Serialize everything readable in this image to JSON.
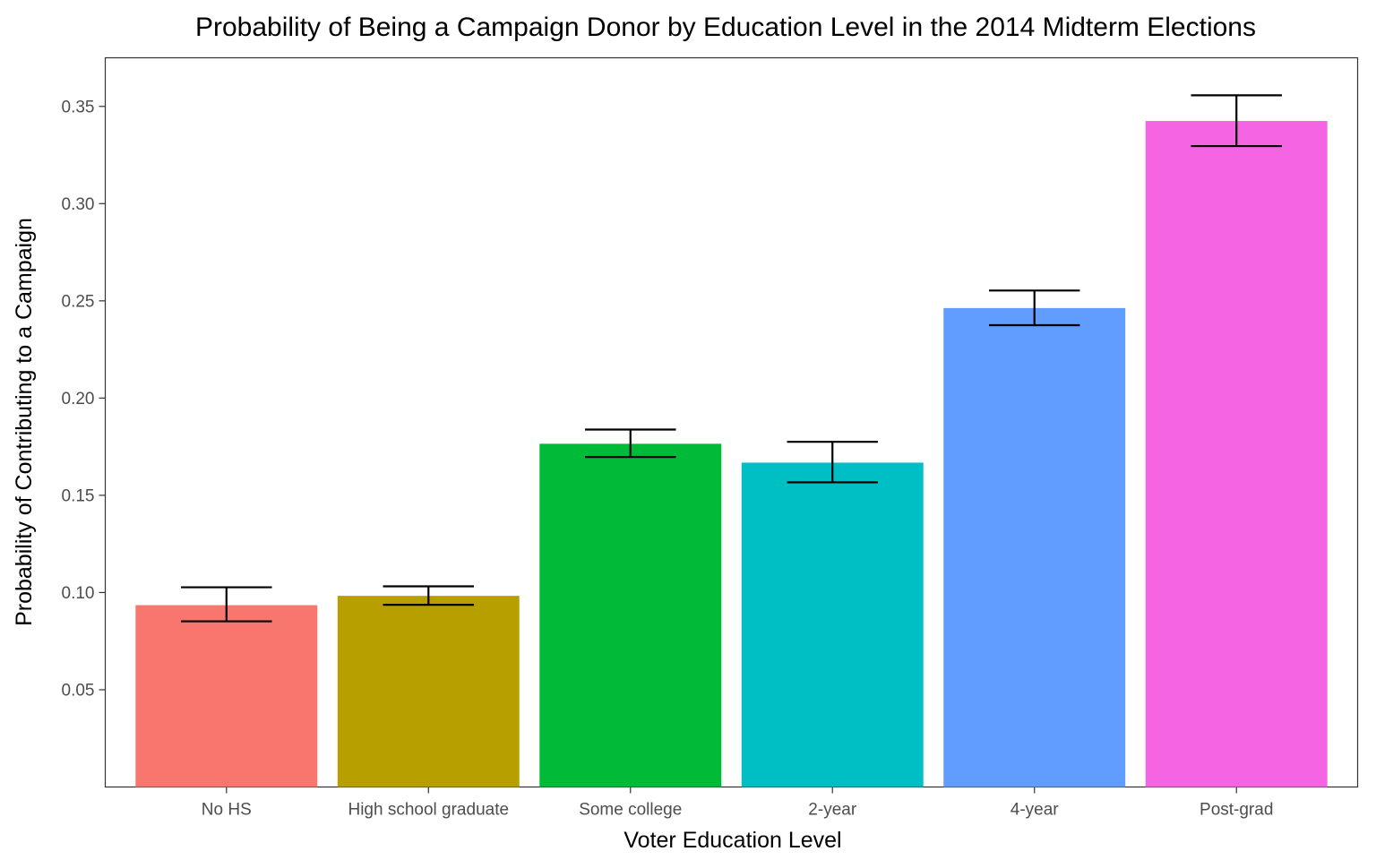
{
  "chart_data": {
    "type": "bar",
    "title": "Probability of Being a Campaign Donor by Education Level in the 2014 Midterm Elections",
    "xlabel": "Voter Education Level",
    "ylabel": "Probability of Contributing to a Campaign",
    "categories": [
      "No HS",
      "High school graduate",
      "Some college",
      "2-year",
      "4-year",
      "Post-grad"
    ],
    "values": [
      0.0935,
      0.0983,
      0.1765,
      0.1668,
      0.2463,
      0.3425
    ],
    "error_low": [
      0.0852,
      0.0937,
      0.1697,
      0.1567,
      0.2375,
      0.3296
    ],
    "error_high": [
      0.1027,
      0.1032,
      0.1838,
      0.1775,
      0.2553,
      0.3557
    ],
    "colors": [
      "#F8766D",
      "#B79F00",
      "#00BA38",
      "#00BFC4",
      "#619CFF",
      "#F564E3"
    ],
    "ylim": [
      0.0,
      0.375
    ],
    "yticks": [
      0.05,
      0.1,
      0.15,
      0.2,
      0.25,
      0.3,
      0.35
    ],
    "ytick_labels": [
      "0.05",
      "0.10",
      "0.15",
      "0.20",
      "0.25",
      "0.30",
      "0.35"
    ],
    "grid": false,
    "legend": "none"
  }
}
